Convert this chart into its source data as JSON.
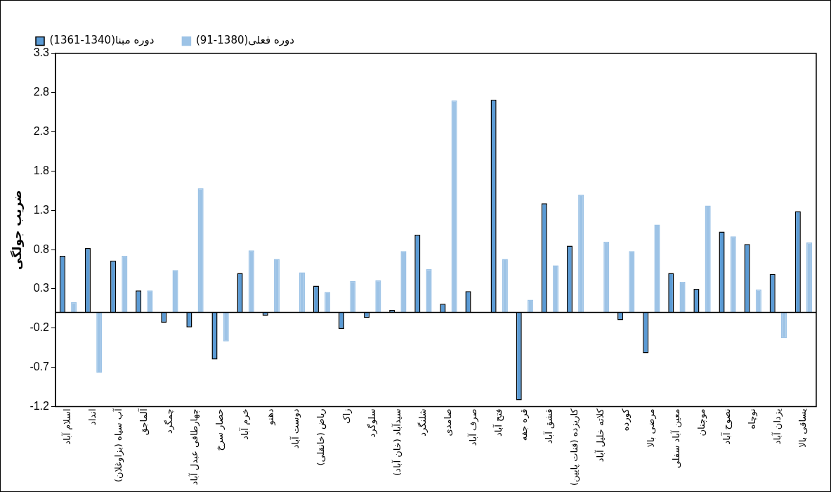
{
  "chart_data": {
    "type": "bar",
    "ylabel": "ضریب جولگی",
    "categories": [
      "اسلام آباد",
      "انداد",
      "آب سیاه (بزاوغلان)",
      "آلماجق",
      "چمگرد",
      "چهارطاقی عبدل آباد",
      "حصار سرخ",
      "خرم آباد",
      "دهنو",
      "دوست آباد",
      "ریاض (خانقلی)",
      "زاک",
      "سلوگرد",
      "سیدآباد (خان آباد)",
      "شلنگرد",
      "صامدی",
      "صرف آباد",
      "فتح آباد",
      "قره جفه",
      "قشق آباد",
      "کاریزده (قنات پایین)",
      "کلاته خلیل آباد",
      "کورده",
      "مرضی بالا",
      "معین آباد سفلی",
      "موچنان",
      "نصوح آباد",
      "نوچاه",
      "یزدان آباد",
      "یساقی بالا"
    ],
    "series": [
      {
        "name": "دوره مبنا(1340-1361)",
        "color": "#5b9bd5",
        "values": [
          0.72,
          0.82,
          0.66,
          0.28,
          -0.13,
          -0.19,
          -0.6,
          0.5,
          -0.04,
          0,
          0.34,
          -0.21,
          -0.07,
          0.03,
          0.99,
          0.11,
          0.27,
          2.71,
          -1.12,
          1.39,
          0.85,
          0,
          -0.1,
          -0.52,
          0.5,
          0.3,
          1.03,
          0.87,
          0.49,
          1.29
        ]
      },
      {
        "name": "دوره فعلی(1380-91)",
        "color": "#9dc3e6",
        "values": [
          0.13,
          -0.77,
          0.72,
          0.28,
          0.54,
          1.58,
          -0.37,
          0.79,
          0.68,
          0.51,
          0.26,
          0.4,
          0.41,
          0.78,
          0.55,
          2.7,
          0,
          0.68,
          0.16,
          0.6,
          1.5,
          0.9,
          0.78,
          1.12,
          0.39,
          1.36,
          0.97,
          0.29,
          -0.33,
          0.89
        ]
      }
    ],
    "ylim": [
      -1.2,
      3.3
    ],
    "yticks": [
      -1.2,
      -0.7,
      -0.2,
      0.3,
      0.8,
      1.3,
      1.8,
      2.3,
      2.8,
      3.3
    ],
    "grid": false,
    "legend": "top left"
  }
}
